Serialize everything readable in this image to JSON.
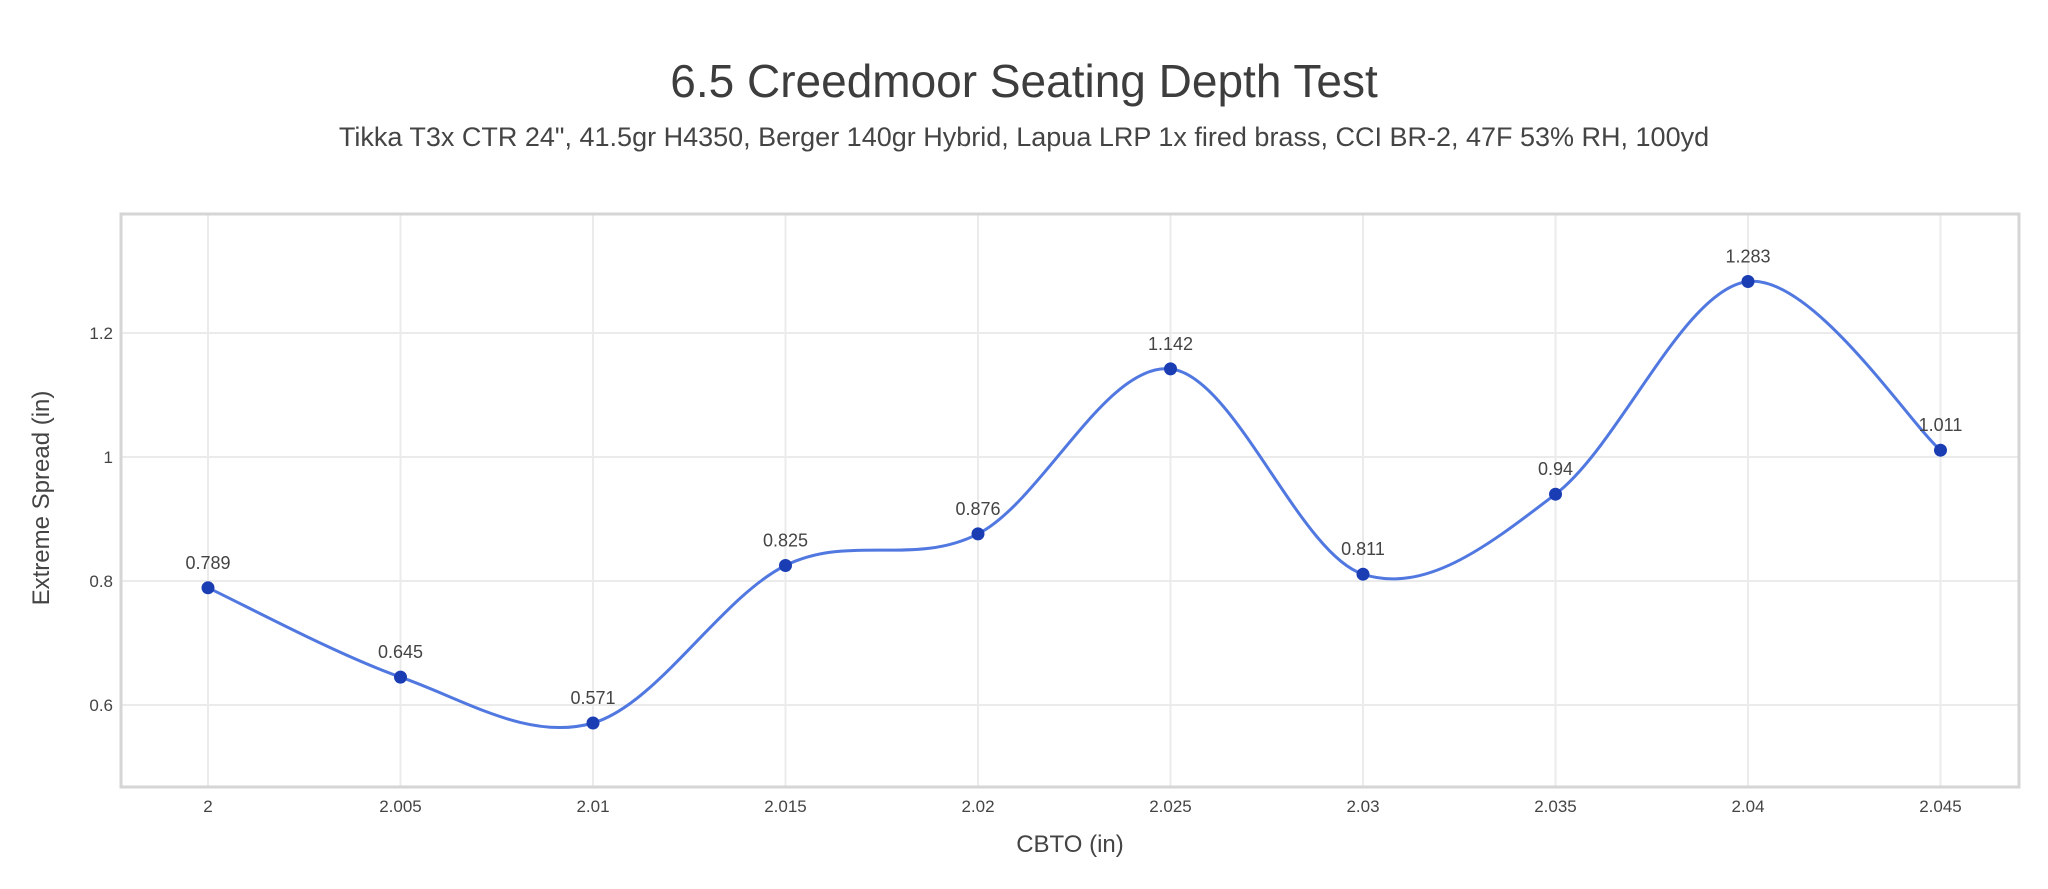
{
  "chart_data": {
    "type": "line",
    "line_shape": "spline",
    "title": "6.5 Creedmoor Seating Depth Test",
    "subtitle": "Tikka T3x CTR 24\", 41.5gr H4350, Berger 140gr Hybrid, Lapua LRP 1x fired brass, CCI BR-2, 47F 53% RH, 100yd",
    "xlabel": "CBTO (in)",
    "ylabel": "Extreme Spread (in)",
    "x": [
      2,
      2.005,
      2.01,
      2.015,
      2.02,
      2.025,
      2.03,
      2.035,
      2.04,
      2.045
    ],
    "y": [
      0.789,
      0.645,
      0.571,
      0.825,
      0.876,
      1.142,
      0.811,
      0.94,
      1.283,
      1.011
    ],
    "point_labels": [
      "0.789",
      "0.645",
      "0.571",
      "0.825",
      "0.876",
      "1.142",
      "0.811",
      "0.94",
      "1.283",
      "1.011"
    ],
    "x_tick_values": [
      2,
      2.005,
      2.01,
      2.015,
      2.02,
      2.025,
      2.03,
      2.035,
      2.04,
      2.045
    ],
    "x_tick_labels": [
      "2",
      "2.005",
      "2.01",
      "2.015",
      "2.02",
      "2.025",
      "2.03",
      "2.035",
      "2.04",
      "2.045"
    ],
    "y_tick_values": [
      0.6,
      0.8,
      1,
      1.2
    ],
    "y_tick_labels": [
      "0.6",
      "0.8",
      "1",
      "1.2"
    ],
    "xlim": [
      1.99774,
      2.04704
    ],
    "ylim": [
      0.4677,
      1.3919
    ],
    "grid": true,
    "legend": false,
    "colors": {
      "line": "#5078e0",
      "marker": "#1b3db4",
      "grid": "#ebebeb",
      "frame": "#d5d5d5",
      "tick_text": "#444444",
      "label_text": "#444444",
      "title_text": "#3d3d3d",
      "background": "#ffffff"
    }
  }
}
